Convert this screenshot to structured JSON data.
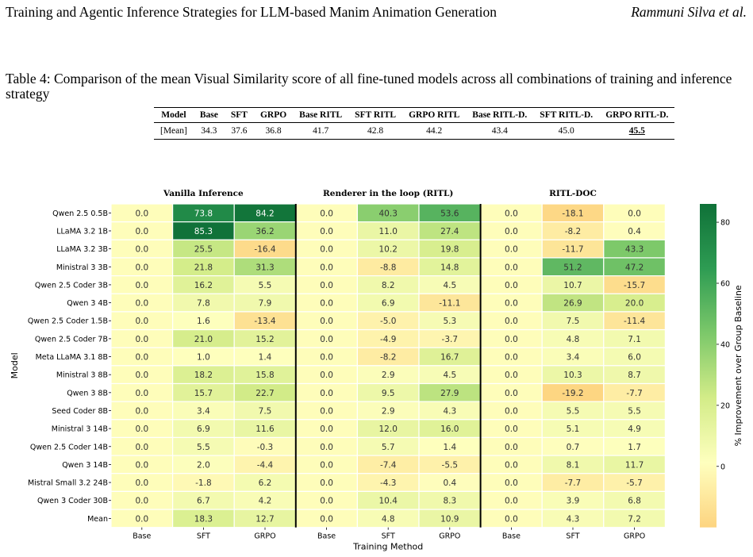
{
  "header": {
    "title": "Training and Agentic Inference Strategies for LLM-based Manim Animation Generation",
    "authors": "Rammuni Silva et al."
  },
  "caption": "Table 4: Comparison of the mean Visual Similarity score of all fine-tuned models across all combinations of training and inference strategy",
  "summary_table": {
    "columns": [
      "Model",
      "Base",
      "SFT",
      "GRPO",
      "Base RITL",
      "SFT RITL",
      "GRPO RITL",
      "Base RITL-D.",
      "SFT RITL-D.",
      "GRPO RITL-D."
    ],
    "row": [
      "[Mean]",
      "34.3",
      "37.6",
      "36.8",
      "41.7",
      "42.8",
      "44.2",
      "43.4",
      "45.0",
      "45.5"
    ]
  },
  "chart_data": {
    "type": "heatmap",
    "groups": [
      "Vanilla Inference",
      "Renderer in the loop (RITL)",
      "RITL-DOC"
    ],
    "x_tick_labels": [
      "Base",
      "SFT",
      "GRPO",
      "Base",
      "SFT",
      "GRPO",
      "Base",
      "SFT",
      "GRPO"
    ],
    "xlabel": "Training Method",
    "ylabel": "Model",
    "rows": [
      "Qwen 2.5 0.5B",
      "LLaMA 3.2 1B",
      "LLaMA 3.2 3B",
      "Ministral 3 3B",
      "Qwen 2.5 Coder 3B",
      "Qwen 3 4B",
      "Qwen 2.5 Coder 1.5B",
      "Qwen 2.5 Coder 7B",
      "Meta LLaMA 3.1 8B",
      "Ministral 3 8B",
      "Qwen 3 8B",
      "Seed Coder 8B",
      "Ministral 3 14B",
      "Qwen 2.5 Coder 14B",
      "Qwen 3 14B",
      "Mistral Small 3.2 24B",
      "Qwen 3 Coder 30B",
      "Mean"
    ],
    "values": [
      [
        0.0,
        73.8,
        84.2,
        0.0,
        40.3,
        53.6,
        0.0,
        -18.1,
        0.0
      ],
      [
        0.0,
        85.3,
        36.2,
        0.0,
        11.0,
        27.4,
        0.0,
        -8.2,
        0.4
      ],
      [
        0.0,
        25.5,
        -16.4,
        0.0,
        10.2,
        19.8,
        0.0,
        -11.7,
        43.3
      ],
      [
        0.0,
        21.8,
        31.3,
        0.0,
        -8.8,
        14.8,
        0.0,
        51.2,
        47.2
      ],
      [
        0.0,
        16.2,
        5.5,
        0.0,
        8.2,
        4.5,
        0.0,
        10.7,
        -15.7
      ],
      [
        0.0,
        7.8,
        7.9,
        0.0,
        6.9,
        -11.1,
        0.0,
        26.9,
        20.0
      ],
      [
        0.0,
        1.6,
        -13.4,
        0.0,
        -5.0,
        5.3,
        0.0,
        7.5,
        -11.4
      ],
      [
        0.0,
        21.0,
        15.2,
        0.0,
        -4.9,
        -3.7,
        0.0,
        4.8,
        7.1
      ],
      [
        0.0,
        1.0,
        1.4,
        0.0,
        -8.2,
        16.7,
        0.0,
        3.4,
        6.0
      ],
      [
        0.0,
        18.2,
        15.8,
        0.0,
        2.9,
        4.5,
        0.0,
        10.3,
        8.7
      ],
      [
        0.0,
        15.7,
        22.7,
        0.0,
        9.5,
        27.9,
        0.0,
        -19.2,
        -7.7
      ],
      [
        0.0,
        3.4,
        7.5,
        0.0,
        2.9,
        4.3,
        0.0,
        5.5,
        5.5
      ],
      [
        0.0,
        6.9,
        11.6,
        0.0,
        12.0,
        16.0,
        0.0,
        5.1,
        4.9
      ],
      [
        0.0,
        5.5,
        -0.3,
        0.0,
        5.7,
        1.4,
        0.0,
        0.7,
        1.7
      ],
      [
        0.0,
        2.0,
        -4.4,
        0.0,
        -7.4,
        -5.5,
        0.0,
        8.1,
        11.7
      ],
      [
        0.0,
        -1.8,
        6.2,
        0.0,
        -4.3,
        0.4,
        0.0,
        -7.7,
        -5.7
      ],
      [
        0.0,
        6.7,
        4.2,
        0.0,
        10.4,
        8.3,
        0.0,
        3.9,
        6.8
      ],
      [
        0.0,
        18.3,
        12.7,
        0.0,
        4.8,
        10.9,
        0.0,
        4.3,
        7.2
      ]
    ],
    "colorbar": {
      "label": "% Improvement over Group Baseline",
      "vmin": -20,
      "vmax": 86,
      "ticks": [
        0,
        20,
        40,
        60,
        80
      ],
      "colormap": "RdYlGn",
      "colors": [
        "#fdd480",
        "#feffbe",
        "#d3ec88",
        "#7cc86a",
        "#2e9c53",
        "#0f7138"
      ]
    }
  }
}
